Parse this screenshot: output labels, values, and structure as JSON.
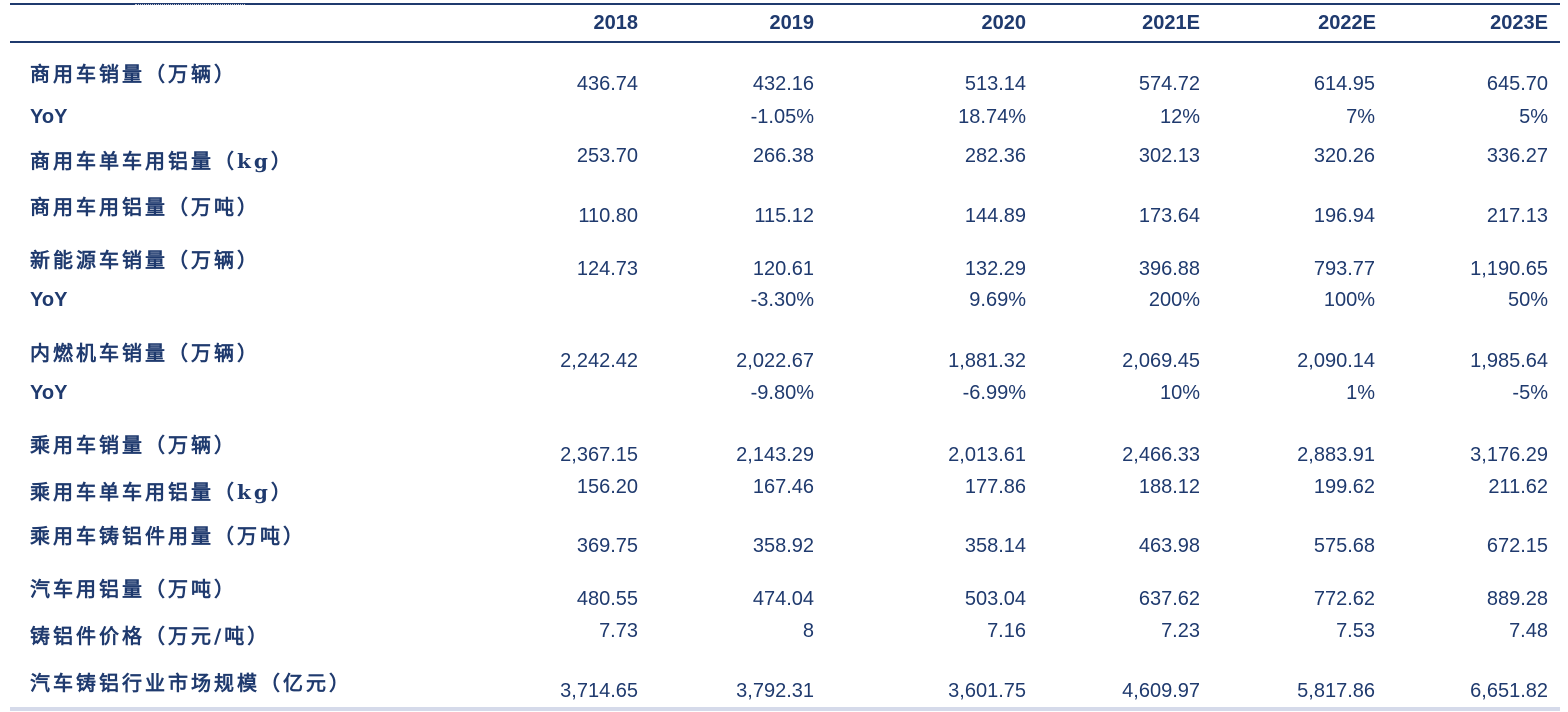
{
  "header": {
    "years": [
      "2018",
      "2019",
      "2020",
      "2021E",
      "2022E",
      "2023E"
    ]
  },
  "rows": [
    {
      "label": "商用车销量（万辆）",
      "values": [
        "436.74",
        "432.16",
        "513.14",
        "574.72",
        "614.95",
        "645.70"
      ]
    },
    {
      "label": "YoY",
      "values": [
        "",
        "-1.05%",
        "18.74%",
        "12%",
        "7%",
        "5%"
      ]
    },
    {
      "label": "商用车单车用铝量（kg）",
      "values": [
        "253.70",
        "266.38",
        "282.36",
        "302.13",
        "320.26",
        "336.27"
      ]
    },
    {
      "label": "商用车用铝量（万吨）",
      "values": [
        "110.80",
        "115.12",
        "144.89",
        "173.64",
        "196.94",
        "217.13"
      ]
    },
    {
      "label": "新能源车销量（万辆）",
      "values": [
        "124.73",
        "120.61",
        "132.29",
        "396.88",
        "793.77",
        "1,190.65"
      ]
    },
    {
      "label": "YoY",
      "values": [
        "",
        "-3.30%",
        "9.69%",
        "200%",
        "100%",
        "50%"
      ]
    },
    {
      "label": "内燃机车销量（万辆）",
      "values": [
        "2,242.42",
        "2,022.67",
        "1,881.32",
        "2,069.45",
        "2,090.14",
        "1,985.64"
      ]
    },
    {
      "label": "YoY",
      "values": [
        "",
        "-9.80%",
        "-6.99%",
        "10%",
        "1%",
        "-5%"
      ]
    },
    {
      "label": "乘用车销量（万辆）",
      "values": [
        "2,367.15",
        "2,143.29",
        "2,013.61",
        "2,466.33",
        "2,883.91",
        "3,176.29"
      ]
    },
    {
      "label": "乘用车单车用铝量（kg）",
      "values": [
        "156.20",
        "167.46",
        "177.86",
        "188.12",
        "199.62",
        "211.62"
      ]
    },
    {
      "label": "乘用车铸铝件用量（万吨）",
      "values": [
        "369.75",
        "358.92",
        "358.14",
        "463.98",
        "575.68",
        "672.15"
      ]
    },
    {
      "label": "汽车用铝量（万吨）",
      "values": [
        "480.55",
        "474.04",
        "503.04",
        "637.62",
        "772.62",
        "889.28"
      ]
    },
    {
      "label": "铸铝件价格（万元/吨）",
      "values": [
        "7.73",
        "8",
        "7.16",
        "7.23",
        "7.53",
        "7.48"
      ]
    },
    {
      "label": "汽车铸铝行业市场规模（亿元）",
      "values": [
        "3,714.65",
        "3,792.31",
        "3,601.75",
        "4,609.97",
        "5,817.86",
        "6,651.82"
      ]
    }
  ]
}
